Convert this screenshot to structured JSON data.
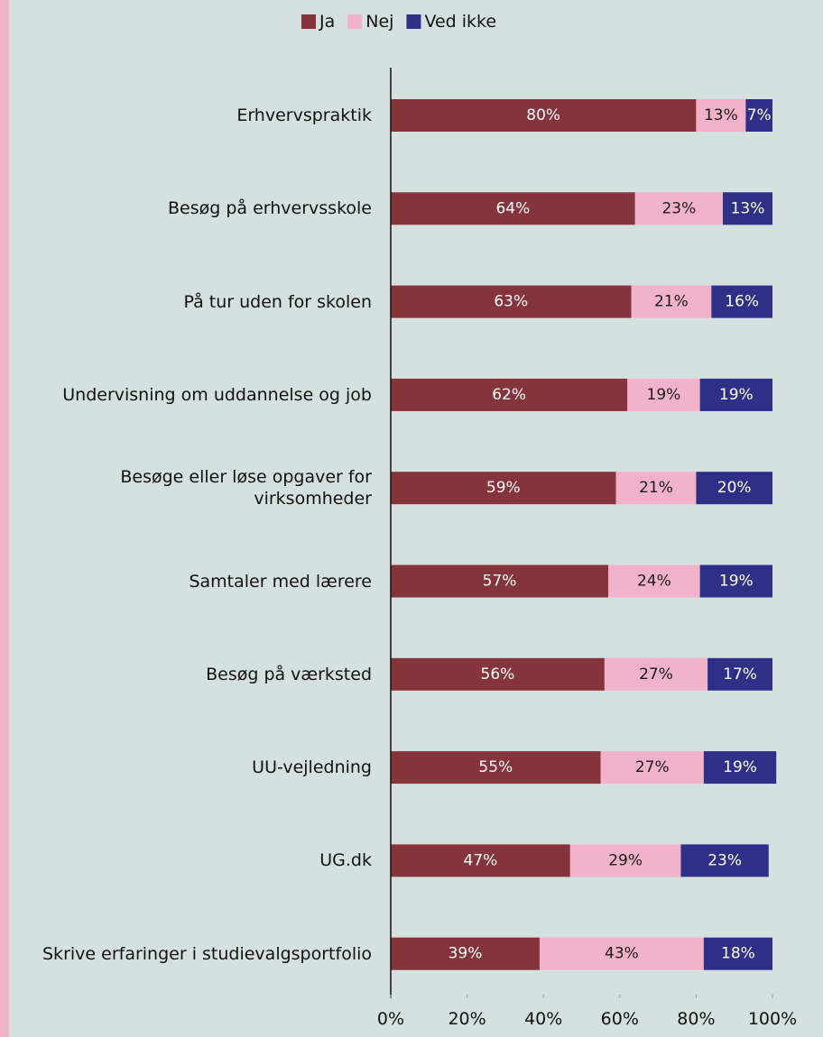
{
  "chart_data": {
    "type": "stacked_barh",
    "categories": [
      "Erhvervspraktik",
      "Besøg på erhvervsskole",
      "På tur uden for skolen",
      "Undervisning om uddannelse og job",
      "Besøge eller løse opgaver for virksomheder",
      "Samtaler med lærere",
      "Besøg på værksted",
      "UU-vejledning",
      "UG.dk",
      "Skrive erfaringer i studievalgsportfolio"
    ],
    "series": [
      {
        "name": "Ja",
        "color": "#84343a",
        "label_color": "#ffffff",
        "values": [
          80,
          64,
          63,
          62,
          59,
          57,
          56,
          55,
          47,
          39
        ],
        "value_labels": [
          "80%",
          "64%",
          "63%",
          "62%",
          "59%",
          "57%",
          "56%",
          "55%",
          "47%",
          "39%"
        ]
      },
      {
        "name": "Nej",
        "color": "#f2b3ca",
        "label_color": "#1a1a1a",
        "values": [
          13,
          23,
          21,
          19,
          21,
          24,
          27,
          27,
          29,
          43
        ],
        "value_labels": [
          "13%",
          "23%",
          "21%",
          "19%",
          "21%",
          "24%",
          "27%",
          "27%",
          "29%",
          "43%"
        ]
      },
      {
        "name": "Ved ikke",
        "color": "#2e2f86",
        "label_color": "#ffffff",
        "values": [
          7,
          13,
          16,
          19,
          20,
          19,
          17,
          19,
          23,
          18
        ],
        "value_labels": [
          "7%",
          "13%",
          "16%",
          "19%",
          "20%",
          "19%",
          "17%",
          "19%",
          "23%",
          "18%"
        ]
      }
    ],
    "xlim": [
      0,
      100
    ],
    "xticks": [
      {
        "value": 0,
        "label": "0%"
      },
      {
        "value": 20,
        "label": "20%"
      },
      {
        "value": 40,
        "label": "40%"
      },
      {
        "value": 60,
        "label": "60%"
      },
      {
        "value": 80,
        "label": "80%"
      },
      {
        "value": 100,
        "label": "100%"
      }
    ],
    "legend": "top"
  }
}
